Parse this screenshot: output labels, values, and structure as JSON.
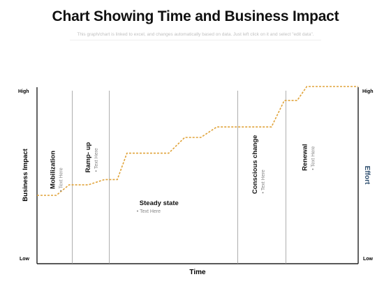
{
  "header": {
    "title": "Chart Showing Time and Business Impact",
    "subtitle": "This graph/chart is linked to excel, and changes automatically based on data. Just left click on it and select \"edit data\"."
  },
  "colors": {
    "line": "#E0A33A",
    "divider": "#9a9a9a",
    "axis": "#222222",
    "effort": "#2f4f6f",
    "muted": "#888888"
  },
  "chart_data": {
    "type": "line",
    "xlabel": "Time",
    "ylabel": "Business Impact",
    "y2label": "Effort",
    "y_ticks": {
      "low": "Low",
      "high": "High"
    },
    "y2_ticks": {
      "low": "Low",
      "high": "High"
    },
    "xlim": [
      0,
      100
    ],
    "ylim": [
      0,
      100
    ],
    "series": [
      {
        "values": [
          [
            0,
            38
          ],
          [
            6,
            38
          ],
          [
            10,
            44
          ],
          [
            16,
            44
          ],
          [
            21,
            47
          ],
          [
            21.5,
            47
          ],
          [
            25,
            47
          ],
          [
            28,
            62
          ],
          [
            41,
            62
          ],
          [
            46,
            71
          ],
          [
            51,
            71
          ],
          [
            56,
            77
          ],
          [
            68,
            77
          ],
          [
            73,
            77
          ],
          [
            77,
            92
          ],
          [
            81,
            92
          ],
          [
            84,
            100
          ],
          [
            100,
            100
          ]
        ]
      }
    ],
    "phase_boundaries": [
      11,
      22.5,
      62.5,
      77.5
    ],
    "phases": [
      {
        "name": "Mobilization",
        "bullet": "Text Here",
        "orientation": "vertical",
        "x": 5.5,
        "y": 53
      },
      {
        "name": "Ramp- up",
        "bullet": "Text Here",
        "orientation": "vertical",
        "x": 16.5,
        "y": 60
      },
      {
        "name": "Steady state",
        "bullet": "Text Here",
        "orientation": "horizontal",
        "x": 38,
        "y": 33
      },
      {
        "name": "Conscious change",
        "bullet": "Text Here",
        "orientation": "vertical",
        "x": 68.5,
        "y": 56
      },
      {
        "name": "Renewal",
        "bullet": "Text Here",
        "orientation": "vertical",
        "x": 84,
        "y": 60
      }
    ]
  }
}
